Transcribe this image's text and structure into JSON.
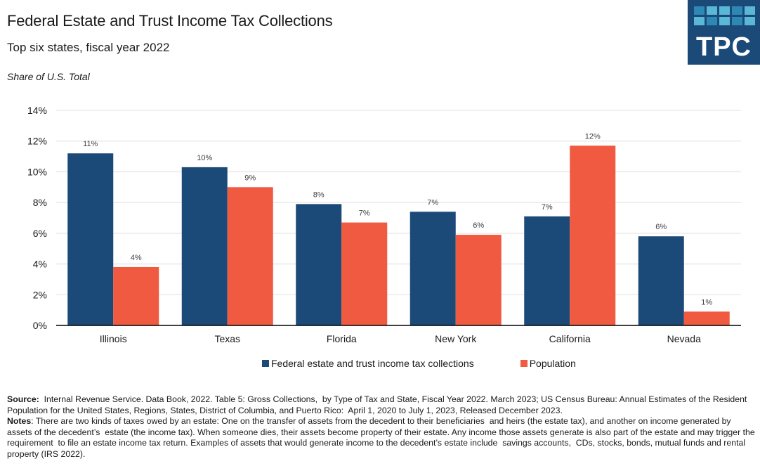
{
  "header": {
    "title": "Federal Estate and Trust Income Tax Collections",
    "subtitle": "Top six states, fiscal year 2022",
    "unit_label": "Share of U.S. Total"
  },
  "logo": {
    "text": "TPC",
    "background": "#1b4a78",
    "tile_colors": [
      "#2e88b4",
      "#5ab7d6",
      "#5ab7d6",
      "#2e88b4",
      "#5ab7d6",
      "#5ab7d6",
      "#2e88b4",
      "#5ab7d6",
      "#2e88b4",
      "#5ab7d6"
    ]
  },
  "colors": {
    "collections": "#1b4a78",
    "population": "#f05a40",
    "grid": "#e6e6e6",
    "axis": "#000000"
  },
  "chart_data": {
    "type": "bar",
    "title": "Federal Estate and Trust Income Tax Collections",
    "subtitle": "Top six states, fiscal year 2022",
    "xlabel": "",
    "ylabel": "Share of U.S. Total",
    "ylim": [
      0,
      14
    ],
    "yticks": [
      0,
      2,
      4,
      6,
      8,
      10,
      12,
      14
    ],
    "ytick_labels": [
      "0%",
      "2%",
      "4%",
      "6%",
      "8%",
      "10%",
      "12%",
      "14%"
    ],
    "grid": true,
    "legend_position": "bottom",
    "categories": [
      "Illinois",
      "Texas",
      "Florida",
      "New York",
      "California",
      "Nevada"
    ],
    "series": [
      {
        "name": "Federal estate and trust income tax collections",
        "values": [
          11.2,
          10.3,
          7.9,
          7.4,
          7.1,
          5.8
        ],
        "labels": [
          "11%",
          "10%",
          "8%",
          "7%",
          "7%",
          "6%"
        ]
      },
      {
        "name": "Population",
        "values": [
          3.8,
          9.0,
          6.7,
          5.9,
          11.7,
          0.9
        ],
        "labels": [
          "4%",
          "9%",
          "7%",
          "6%",
          "12%",
          "1%"
        ]
      }
    ]
  },
  "footer": {
    "source_label": "Source:",
    "source_text": "  Internal Revenue Service. Data Book, 2022. Table 5: Gross Collections,  by Type of Tax and State, Fiscal Year 2022. March 2023; US Census Bureau: Annual Estimates of the Resident Population for the United States, Regions, States, District of Columbia, and Puerto Rico:  April 1, 2020 to July 1, 2023, Released December 2023.",
    "notes_label": "Notes",
    "notes_text": ": There are two kinds of taxes owed by an estate: One on the transfer of assets from the decedent to their beneficiaries  and heirs (the estate tax), and another on income generated by assets of the decedent’s  estate (the income tax). When someone dies, their assets become property of their estate. Any income those assets generate is also part of the estate and may trigger the requirement  to file an estate income tax return. Examples of assets that would generate income to the decedent’s estate include  savings accounts,  CDs, stocks, bonds, mutual funds and rental property (IRS 2022)."
  }
}
